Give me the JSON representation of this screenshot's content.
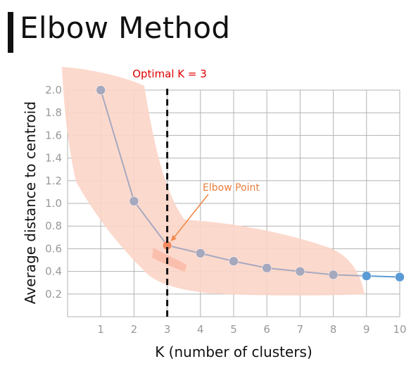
{
  "title": "Elbow Method",
  "chart_data": {
    "type": "line",
    "title": "Elbow Method",
    "xlabel": "K (number of clusters)",
    "ylabel": "Average distance to centroid",
    "x": [
      1,
      2,
      3,
      4,
      5,
      6,
      7,
      8,
      9,
      10
    ],
    "xticks": [
      "1",
      "2",
      "3",
      "4",
      "5",
      "6",
      "7",
      "8",
      "9",
      "10"
    ],
    "xlim": [
      0,
      10
    ],
    "yticks": [
      "0.2",
      "0.4",
      "0.6",
      "0.8",
      "1.0",
      "1.2",
      "1.4",
      "1.6",
      "1.8",
      "2.0"
    ],
    "ylim": [
      0,
      2.0
    ],
    "grid": true,
    "series": [
      {
        "values": [
          2.0,
          1.02,
          0.63,
          0.56,
          0.49,
          0.43,
          0.4,
          0.37,
          0.36,
          0.35
        ]
      }
    ],
    "highlight_points": [
      {
        "x": 3,
        "y": 0.63,
        "color": "#f58a62"
      },
      {
        "x": 9,
        "y": 0.36,
        "color": "#5b9bd5"
      },
      {
        "x": 10,
        "y": 0.35,
        "color": "#5b9bd5"
      }
    ],
    "optimal_line": {
      "x": 3,
      "label": "Optimal K = 3",
      "color": "#e00000"
    },
    "annotation": {
      "text": "Elbow Point",
      "x": 3,
      "y": 0.63,
      "color": "#e87d3e"
    },
    "colors": {
      "line": "#a7a9c0",
      "point": "#a6a8bd",
      "blue_line": "#5b9bd5",
      "band": "#fcd5c8",
      "grid": "#b3b3b3"
    }
  }
}
